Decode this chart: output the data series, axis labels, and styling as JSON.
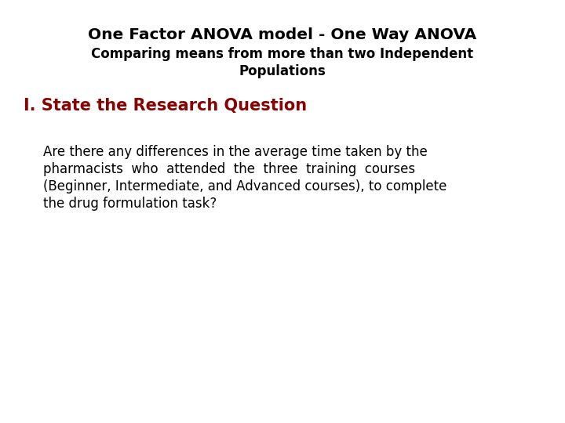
{
  "title_line1": "One Factor ANOVA model - One Way ANOVA",
  "title_line2": "Comparing means from more than two Independent",
  "title_line3": "Populations",
  "section_heading": "I. State the Research Question",
  "body_lines": [
    "Are there any differences in the average time taken by the",
    "pharmacists  who  attended  the  three  training  courses",
    "(Beginner, Intermediate, and Advanced courses), to complete",
    "the drug formulation task?"
  ],
  "title_color": "#000000",
  "section_color": "#8B0000",
  "body_color": "#000000",
  "background_color": "#ffffff",
  "title_fontsize": 14.5,
  "subtitle_fontsize": 12,
  "section_fontsize": 15,
  "body_fontsize": 12
}
